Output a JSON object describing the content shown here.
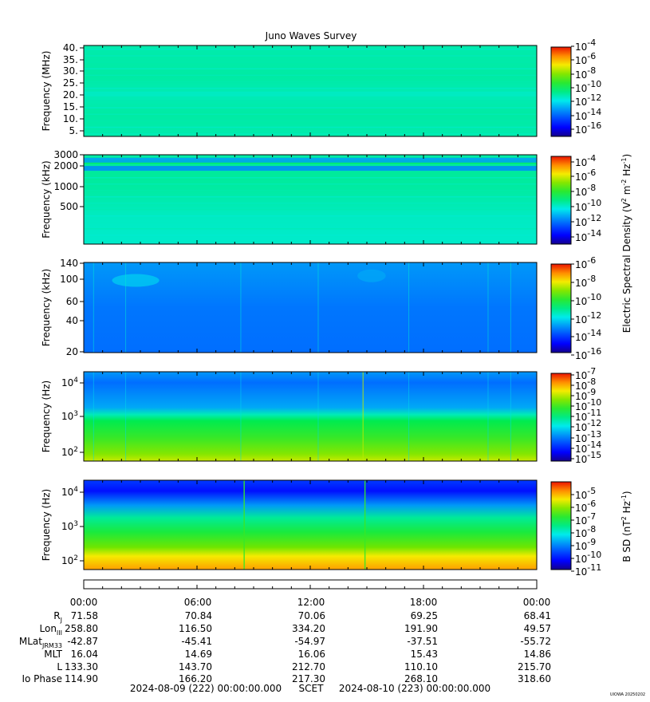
{
  "figure": {
    "title": "Juno Waves Survey",
    "watermark": "UIOWA 20250202",
    "time_range": {
      "start": "2024-08-09 (222) 00:00:00.000",
      "label": "SCET",
      "end": "2024-08-10 (223) 00:00:00.000"
    },
    "colors": {
      "background": "#ffffff",
      "text": "#000000"
    },
    "colorscale": "rainbow (blue-cyan-green-yellow-red)"
  },
  "chart_data": [
    {
      "type": "heatmap",
      "ylabel": "Frequency (MHz)",
      "y_ticks": [
        "40.",
        "35.",
        "30.",
        "25.",
        "20.",
        "15.",
        "10.",
        "5."
      ],
      "ylim": [
        3.5,
        41
      ],
      "yscale": "linear",
      "colorbar_ticks": [
        "10-4",
        "10-6",
        "10-8",
        "10-10",
        "10-12",
        "10-14",
        "10-16"
      ],
      "colorbar_range": [
        -17,
        -4
      ],
      "features": [
        {
          "kind": "band",
          "freq": 21,
          "level": -11.3
        }
      ]
    },
    {
      "type": "heatmap",
      "ylabel": "Frequency (kHz)",
      "y_ticks": [
        "3000",
        "2000",
        "1000",
        "500"
      ],
      "ylim": [
        150,
        3000
      ],
      "yscale": "log",
      "colorbar_ticks": [
        "10-4",
        "10-6",
        "10-8",
        "10-10",
        "10-12",
        "10-14"
      ],
      "colorbar_range": [
        -15,
        -3
      ],
      "shared_colorbar_label": "Electric Spectral Density (V2 m-2 Hz-1)",
      "features": [
        {
          "kind": "band",
          "freq": 2500,
          "level": -11.3
        },
        {
          "kind": "band",
          "freq": 1900,
          "level": -11.6
        }
      ]
    },
    {
      "type": "heatmap",
      "ylabel": "Frequency (kHz)",
      "y_ticks": [
        "140",
        "100",
        "60",
        "40",
        "20"
      ],
      "ylim": [
        20,
        140
      ],
      "yscale": "log",
      "colorbar_ticks": [
        "10-6",
        "10-8",
        "10-10",
        "10-12",
        "10-14",
        "10-16"
      ],
      "colorbar_range": [
        -17,
        -6
      ],
      "colorbar_label": "Electric Spectral Density (V2 m-2 Hz-1)",
      "features": [
        {
          "kind": "emission",
          "t_start": 1.5,
          "t_end": 4.0,
          "freq": 95,
          "level": -13.0
        },
        {
          "kind": "emission",
          "t_start": 14.5,
          "t_end": 16.0,
          "freq": 105,
          "level": -13.5
        }
      ]
    },
    {
      "type": "heatmap",
      "ylabel": "Frequency (Hz)",
      "y_ticks": [
        "10^4",
        "10^3",
        "10^2"
      ],
      "ylim": [
        50,
        20000
      ],
      "yscale": "log",
      "colorbar_ticks": [
        "10-7",
        "10-8",
        "10-9",
        "10-10",
        "10-11",
        "10-12",
        "10-13",
        "10-14",
        "10-15"
      ],
      "colorbar_range": [
        -15,
        -7
      ],
      "features": [
        {
          "kind": "spike",
          "t": 14.8,
          "level": -9.0
        }
      ]
    },
    {
      "type": "heatmap",
      "ylabel": "Frequency (Hz)",
      "y_ticks": [
        "10^4",
        "10^3",
        "10^2"
      ],
      "ylim": [
        50,
        20000
      ],
      "yscale": "log",
      "colorbar_ticks": [
        "10-5",
        "10-6",
        "10-7",
        "10-8",
        "10-9",
        "10-10",
        "10-11"
      ],
      "colorbar_range": [
        -11,
        -4.5
      ],
      "colorbar_label": "B SD (nT2 Hz-1)",
      "features": [
        {
          "kind": "spike",
          "t": 8.5,
          "level": -7.0
        },
        {
          "kind": "spike",
          "t": 14.9,
          "level": -7.0
        }
      ]
    }
  ],
  "ephemeris": {
    "time_labels": [
      "00:00",
      "06:00",
      "12:00",
      "18:00",
      "00:00"
    ],
    "rows": [
      {
        "label": "RJ",
        "values": [
          "71.58",
          "70.84",
          "70.06",
          "69.25",
          "68.41"
        ]
      },
      {
        "label": "LonIII",
        "values": [
          "258.80",
          "116.50",
          "334.20",
          "191.90",
          "49.57"
        ]
      },
      {
        "label": "MLatJRM33",
        "values": [
          "-42.87",
          "-45.41",
          "-54.97",
          "-37.51",
          "-55.72"
        ]
      },
      {
        "label": "MLT",
        "values": [
          "16.04",
          "14.69",
          "16.06",
          "15.43",
          "14.86"
        ]
      },
      {
        "label": "L",
        "values": [
          "133.30",
          "143.70",
          "212.70",
          "110.10",
          "215.70"
        ]
      },
      {
        "label": "Io Phase",
        "values": [
          "114.90",
          "166.20",
          "217.30",
          "268.10",
          "318.60"
        ]
      }
    ]
  }
}
